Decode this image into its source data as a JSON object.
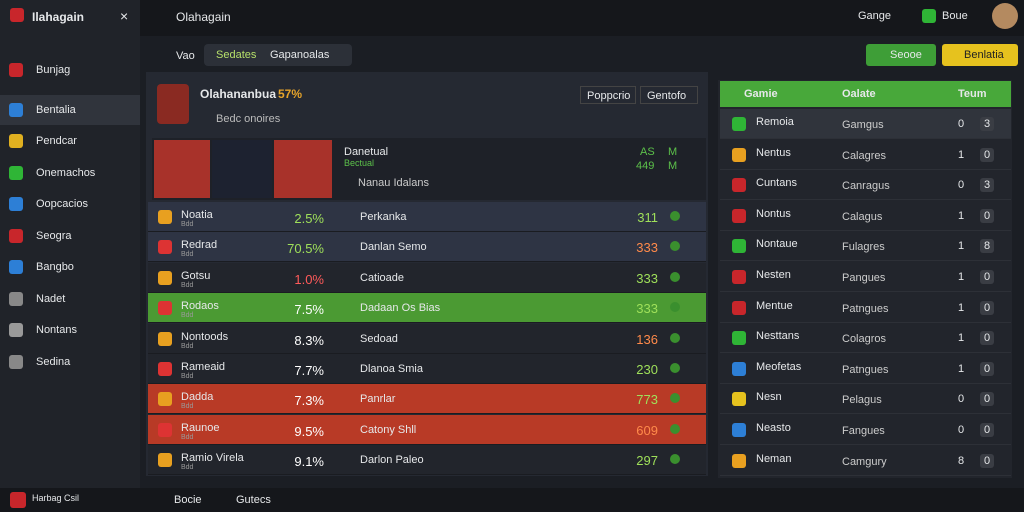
{
  "header": {
    "app_title": "Ilahagain",
    "tab_title": "Olahagain",
    "search": "Gange",
    "user": "Boue"
  },
  "sidebar": [
    "Bunjag",
    "Bentalia",
    "Pendcar",
    "Onemachos",
    "Oopcacios",
    "Seogra",
    "Bangbo",
    "Nadet",
    "Nontans",
    "Sedina"
  ],
  "toolbar": {
    "label": "Vao",
    "tabs": [
      "Sedates",
      "Gapanoalas"
    ],
    "buttons": [
      "Seooe",
      "Benlatia"
    ]
  },
  "match": {
    "title": "Olahananbua",
    "pct": "57%",
    "subtitle": "Bedc onoires",
    "tabs": [
      "Poppcrio",
      "Gentofo"
    ],
    "featured": {
      "name": "Danetual",
      "sub": "Bectual",
      "note": "Nanau Idalans",
      "stat_a": "AS",
      "stat_b": "M",
      "stat_c": "449",
      "stat_d": "M"
    }
  },
  "rows": [
    {
      "name": "Noatia",
      "sub": "Bdd",
      "pct": "2.5%",
      "opponent": "Perkanka",
      "score": "311",
      "state": "normal"
    },
    {
      "name": "Redrad",
      "sub": "Bdd",
      "pct": "70.5%",
      "opponent": "Danlan Semo",
      "score": "333",
      "state": "normal"
    },
    {
      "name": "Gotsu",
      "sub": "Bdd",
      "pct": "1.0%",
      "opponent": "Catioade",
      "score": "333",
      "state": "dark"
    },
    {
      "name": "Rodaos",
      "sub": "Bdd",
      "pct": "7.5%",
      "opponent": "Dadaan Os Bias",
      "score": "333",
      "state": "green"
    },
    {
      "name": "Nontoods",
      "sub": "Bdd",
      "pct": "8.3%",
      "opponent": "Sedoad",
      "score": "136",
      "state": "dark"
    },
    {
      "name": "Rameaid",
      "sub": "Bdd",
      "pct": "7.7%",
      "opponent": "Dlanoa Smia",
      "score": "230",
      "state": "dark"
    },
    {
      "name": "Dadda",
      "sub": "Bdd",
      "pct": "7.3%",
      "opponent": "Panrlar",
      "score": "773",
      "state": "red"
    },
    {
      "name": "Raunoe",
      "sub": "Bdd",
      "pct": "9.5%",
      "opponent": "Catony Shll",
      "score": "609",
      "state": "red"
    },
    {
      "name": "Ramio Virela",
      "sub": "Bdd",
      "pct": "9.1%",
      "opponent": "Darlon Paleo",
      "score": "297",
      "state": "dark"
    }
  ],
  "standings": {
    "headers": [
      "Gamie",
      "Oalate",
      "Teum"
    ],
    "rows": [
      {
        "name": "Remoia",
        "group": "Gamgus",
        "a": "0",
        "b": "3"
      },
      {
        "name": "Nentus",
        "group": "Calagres",
        "a": "1",
        "b": "0"
      },
      {
        "name": "Cuntans",
        "group": "Canragus",
        "a": "0",
        "b": "3"
      },
      {
        "name": "Nontus",
        "group": "Calagus",
        "a": "1",
        "b": "0"
      },
      {
        "name": "Nontaue",
        "group": "Fulagres",
        "a": "1",
        "b": "8"
      },
      {
        "name": "Nesten",
        "group": "Pangues",
        "a": "1",
        "b": "0"
      },
      {
        "name": "Mentue",
        "group": "Patngues",
        "a": "1",
        "b": "0"
      },
      {
        "name": "Nesttans",
        "group": "Colagros",
        "a": "1",
        "b": "0"
      },
      {
        "name": "Meofetas",
        "group": "Patngues",
        "a": "1",
        "b": "0"
      },
      {
        "name": "Nesn",
        "group": "Pelagus",
        "a": "0",
        "b": "0"
      },
      {
        "name": "Neasto",
        "group": "Fangues",
        "a": "0",
        "b": "0"
      },
      {
        "name": "Neman",
        "group": "Camgury",
        "a": "8",
        "b": "0"
      }
    ]
  },
  "footer": {
    "user": "Harbag Csil",
    "items": [
      "Bocie",
      "Gutecs"
    ]
  }
}
